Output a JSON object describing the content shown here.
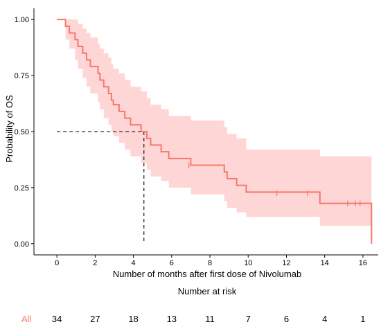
{
  "chart_data": {
    "type": "line",
    "subtype": "kaplan-meier",
    "xlabel": "Number of months after first dose of Nivolumab",
    "ylabel": "Probability of OS",
    "xlim": [
      -1.2,
      16.8
    ],
    "ylim": [
      -0.05,
      1.05
    ],
    "x_ticks": [
      0,
      2,
      4,
      6,
      8,
      10,
      12,
      14,
      16
    ],
    "y_ticks": [
      0,
      0.25,
      0.5,
      0.75,
      1
    ],
    "y_tick_labels": [
      "0.00",
      "0.25",
      "0.50",
      "0.75",
      "1.00"
    ],
    "grid": false,
    "median_survival": {
      "x": 4.55,
      "y": 0.5
    },
    "series": [
      {
        "label": "All",
        "color": "#F8766D",
        "ci_color": "#FFD6D6",
        "steps": [
          [
            0,
            1.0
          ],
          [
            0.45,
            0.97
          ],
          [
            0.65,
            0.94
          ],
          [
            0.95,
            0.91
          ],
          [
            1.1,
            0.88
          ],
          [
            1.35,
            0.85
          ],
          [
            1.55,
            0.82
          ],
          [
            1.75,
            0.79
          ],
          [
            2.15,
            0.76
          ],
          [
            2.25,
            0.73
          ],
          [
            2.45,
            0.7
          ],
          [
            2.7,
            0.67
          ],
          [
            2.85,
            0.64
          ],
          [
            2.95,
            0.62
          ],
          [
            3.25,
            0.59
          ],
          [
            3.55,
            0.56
          ],
          [
            3.85,
            0.53
          ],
          [
            4.4,
            0.5
          ],
          [
            4.7,
            0.47
          ],
          [
            4.9,
            0.44
          ],
          [
            5.45,
            0.41
          ],
          [
            5.85,
            0.38
          ],
          [
            7.0,
            0.35
          ],
          [
            8.75,
            0.32
          ],
          [
            8.9,
            0.29
          ],
          [
            9.4,
            0.26
          ],
          [
            9.9,
            0.23
          ],
          [
            13.75,
            0.18
          ],
          [
            16.45,
            0.0
          ]
        ],
        "end_x": 16.5,
        "ci_lower": [
          [
            0,
            1.0
          ],
          [
            0.45,
            0.91
          ],
          [
            0.65,
            0.87
          ],
          [
            0.95,
            0.82
          ],
          [
            1.1,
            0.78
          ],
          [
            1.35,
            0.74
          ],
          [
            1.55,
            0.7
          ],
          [
            1.75,
            0.67
          ],
          [
            2.15,
            0.63
          ],
          [
            2.25,
            0.6
          ],
          [
            2.45,
            0.56
          ],
          [
            2.7,
            0.53
          ],
          [
            2.85,
            0.5
          ],
          [
            2.95,
            0.48
          ],
          [
            3.25,
            0.45
          ],
          [
            3.55,
            0.42
          ],
          [
            3.85,
            0.39
          ],
          [
            4.4,
            0.36
          ],
          [
            4.7,
            0.33
          ],
          [
            4.9,
            0.3
          ],
          [
            5.45,
            0.28
          ],
          [
            5.85,
            0.25
          ],
          [
            7.0,
            0.22
          ],
          [
            8.75,
            0.19
          ],
          [
            8.9,
            0.16
          ],
          [
            9.4,
            0.14
          ],
          [
            9.9,
            0.12
          ],
          [
            13.75,
            0.08
          ]
        ],
        "ci_upper": [
          [
            0,
            1.0
          ],
          [
            0.45,
            1.0
          ],
          [
            0.95,
            1.0
          ],
          [
            1.1,
            0.98
          ],
          [
            1.35,
            0.96
          ],
          [
            1.55,
            0.94
          ],
          [
            1.75,
            0.92
          ],
          [
            2.15,
            0.89
          ],
          [
            2.25,
            0.87
          ],
          [
            2.45,
            0.85
          ],
          [
            2.7,
            0.83
          ],
          [
            2.85,
            0.8
          ],
          [
            2.95,
            0.78
          ],
          [
            3.25,
            0.76
          ],
          [
            3.55,
            0.73
          ],
          [
            3.85,
            0.7
          ],
          [
            4.4,
            0.68
          ],
          [
            4.7,
            0.65
          ],
          [
            4.9,
            0.62
          ],
          [
            5.45,
            0.6
          ],
          [
            5.85,
            0.57
          ],
          [
            7.0,
            0.55
          ],
          [
            8.75,
            0.52
          ],
          [
            8.9,
            0.49
          ],
          [
            9.4,
            0.47
          ],
          [
            9.9,
            0.42
          ],
          [
            13.75,
            0.39
          ]
        ],
        "censored": [
          [
            6.9,
            0.35
          ],
          [
            11.5,
            0.225
          ],
          [
            13.1,
            0.225
          ],
          [
            15.2,
            0.18
          ],
          [
            15.6,
            0.18
          ],
          [
            15.85,
            0.18
          ]
        ]
      }
    ],
    "risk_table": {
      "title": "Number at risk",
      "group_label": "All",
      "counts": [
        34,
        27,
        18,
        13,
        11,
        7,
        6,
        4,
        1
      ]
    }
  }
}
